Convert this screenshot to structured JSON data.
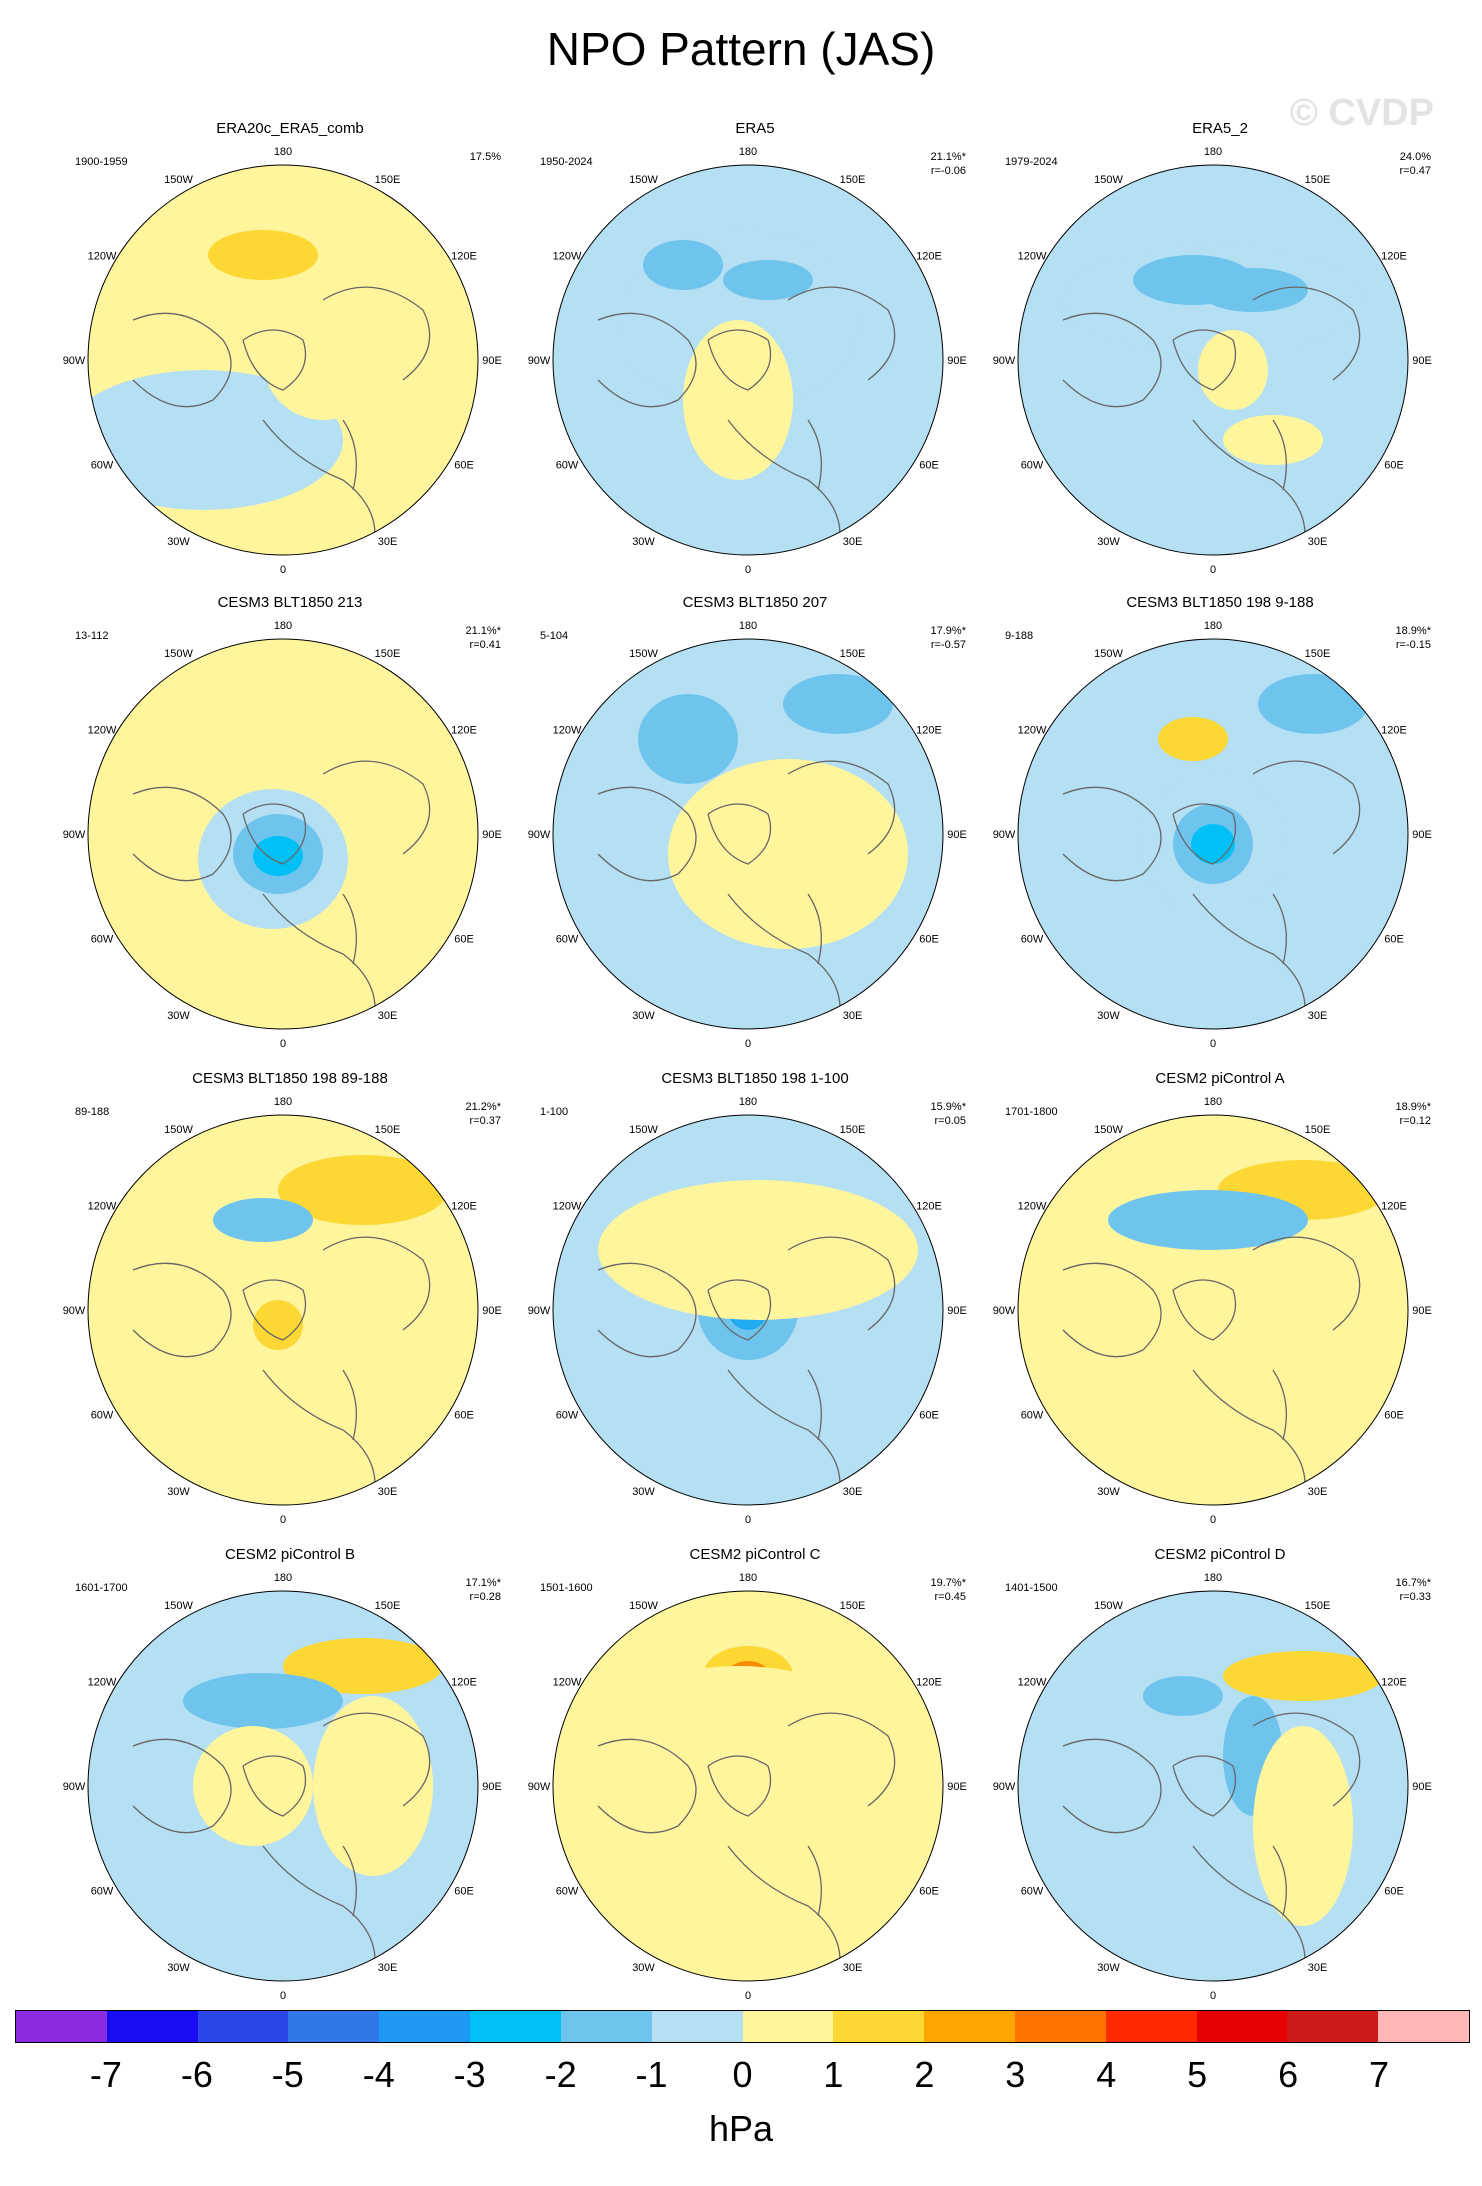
{
  "title": "NPO Pattern (JAS)",
  "watermark": "© CVDP",
  "colors": {
    "land_line": "#666666",
    "pos1": "#fff59d",
    "pos2": "#fdd835",
    "pos3": "#fb8c00",
    "neg1": "#b5dff2",
    "neg2": "#6fc4ee",
    "neg3": "#22aaf0",
    "neg4": "#00c0f5"
  },
  "lon_labels": [
    "180",
    "150E",
    "120E",
    "90E",
    "60E",
    "30E",
    "0",
    "30W",
    "60W",
    "90W",
    "120W",
    "150W"
  ],
  "panels": [
    {
      "title": "ERA20c_ERA5_comb",
      "period": "1900-1959",
      "pct": "17.5%",
      "r": "",
      "icon": "polar-map-icon"
    },
    {
      "title": "ERA5",
      "period": "1950-2024",
      "pct": "21.1%*",
      "r": "r=-0.06",
      "icon": "polar-map-icon"
    },
    {
      "title": "ERA5_2",
      "period": "1979-2024",
      "pct": "24.0%",
      "r": "r=0.47",
      "icon": "polar-map-icon"
    },
    {
      "title": "CESM3 BLT1850 213",
      "period": "13-112",
      "pct": "21.1%*",
      "r": "r=0.41",
      "icon": "polar-map-icon"
    },
    {
      "title": "CESM3 BLT1850 207",
      "period": "5-104",
      "pct": "17.9%*",
      "r": "r=-0.57",
      "icon": "polar-map-icon"
    },
    {
      "title": "CESM3 BLT1850 198 9-188",
      "period": "9-188",
      "pct": "18.9%*",
      "r": "r=-0.15",
      "icon": "polar-map-icon"
    },
    {
      "title": "CESM3 BLT1850 198 89-188",
      "period": "89-188",
      "pct": "21.2%*",
      "r": "r=0.37",
      "icon": "polar-map-icon"
    },
    {
      "title": "CESM3 BLT1850 198 1-100",
      "period": "1-100",
      "pct": "15.9%*",
      "r": "r=0.05",
      "icon": "polar-map-icon"
    },
    {
      "title": "CESM2 piControl A",
      "period": "1701-1800",
      "pct": "18.9%*",
      "r": "r=0.12",
      "icon": "polar-map-icon"
    },
    {
      "title": "CESM2 piControl B",
      "period": "1601-1700",
      "pct": "17.1%*",
      "r": "r=0.28",
      "icon": "polar-map-icon"
    },
    {
      "title": "CESM2 piControl C",
      "period": "1501-1600",
      "pct": "19.7%*",
      "r": "r=0.45",
      "icon": "polar-map-icon"
    },
    {
      "title": "CESM2 piControl D",
      "period": "1401-1500",
      "pct": "16.7%*",
      "r": "r=0.33",
      "icon": "polar-map-icon"
    }
  ],
  "colorbar": {
    "colors": [
      "#8a2be2",
      "#1a0cf2",
      "#2a46e6",
      "#3078ea",
      "#1e9af5",
      "#00c0f5",
      "#6fc4ee",
      "#b5dff2",
      "#fff59d",
      "#fdd835",
      "#ffa500",
      "#ff7400",
      "#ff2a00",
      "#e60000",
      "#cc1a1a",
      "#ffb6b6"
    ],
    "labels": [
      "-7",
      "-6",
      "-5",
      "-4",
      "-3",
      "-2",
      "-1",
      "0",
      "1",
      "2",
      "3",
      "4",
      "5",
      "6",
      "7"
    ],
    "units": "hPa"
  }
}
